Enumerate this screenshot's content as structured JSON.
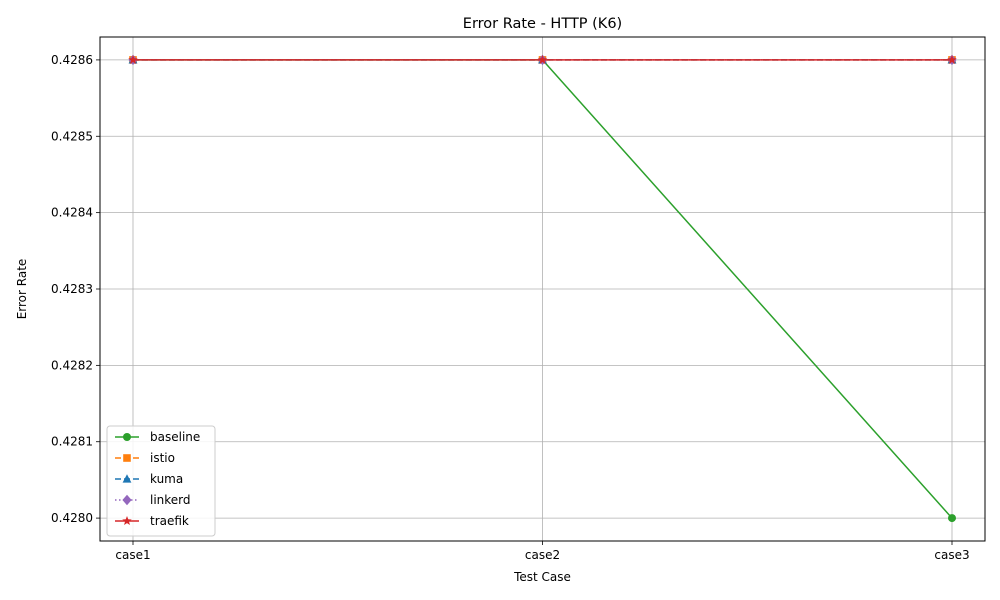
{
  "chart_data": {
    "type": "line",
    "title": "Error Rate - HTTP (K6)",
    "xlabel": "Test Case",
    "ylabel": "Error Rate",
    "categories": [
      "case1",
      "case2",
      "case3"
    ],
    "ylim": [
      0.42797,
      0.42863
    ],
    "yticks": [
      0.428,
      0.4281,
      0.4282,
      0.4283,
      0.4284,
      0.4285,
      0.4286
    ],
    "ytick_labels": [
      "0.4280",
      "0.4281",
      "0.4282",
      "0.4283",
      "0.4284",
      "0.4285",
      "0.4286"
    ],
    "grid": true,
    "legend_position": "lower-left",
    "series": [
      {
        "name": "baseline",
        "values": [
          0.4286,
          0.4286,
          0.428
        ],
        "color": "#2ca02c",
        "marker": "circle",
        "linestyle": "solid"
      },
      {
        "name": "istio",
        "values": [
          0.4286,
          0.4286,
          0.4286
        ],
        "color": "#ff7f0e",
        "marker": "square",
        "linestyle": "dashed"
      },
      {
        "name": "kuma",
        "values": [
          0.4286,
          0.4286,
          0.4286
        ],
        "color": "#1f77b4",
        "marker": "triangle",
        "linestyle": "dashed"
      },
      {
        "name": "linkerd",
        "values": [
          0.4286,
          0.4286,
          0.4286
        ],
        "color": "#9467bd",
        "marker": "diamond",
        "linestyle": "dotted"
      },
      {
        "name": "traefik",
        "values": [
          0.4286,
          0.4286,
          0.4286
        ],
        "color": "#d62728",
        "marker": "star",
        "linestyle": "solid"
      }
    ]
  }
}
